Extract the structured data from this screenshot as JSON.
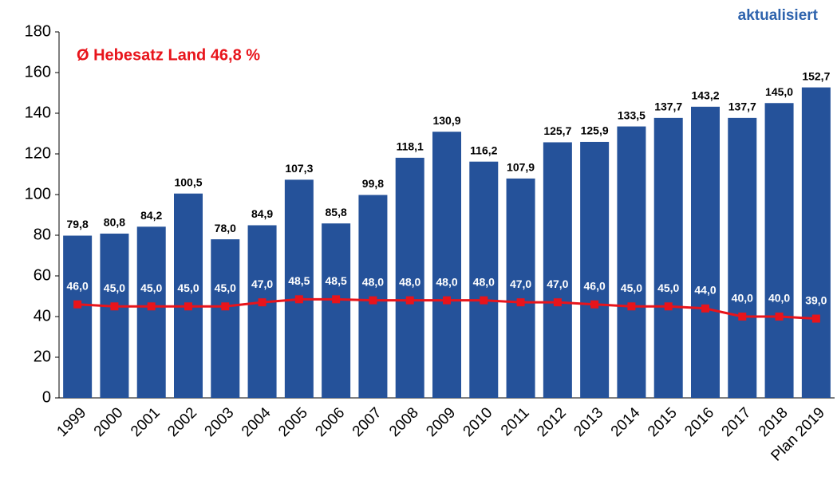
{
  "chart_data": {
    "type": "bar",
    "title": "Ø Hebesatz Land 46,8 %",
    "subtitle": "aktualisiert",
    "categories": [
      "1999",
      "2000",
      "2001",
      "2002",
      "2003",
      "2004",
      "2005",
      "2006",
      "2007",
      "2008",
      "2009",
      "2010",
      "2011",
      "2012",
      "2013",
      "2014",
      "2015",
      "2016",
      "2017",
      "2018",
      "Plan 2019"
    ],
    "series": [
      {
        "type": "bar",
        "color": "#25529a",
        "values": [
          79.8,
          80.8,
          84.2,
          100.5,
          78.0,
          84.9,
          107.3,
          85.8,
          99.8,
          118.1,
          130.9,
          116.2,
          107.9,
          125.7,
          125.9,
          133.5,
          137.7,
          143.2,
          137.7,
          145.0,
          152.7
        ],
        "value_labels": [
          "79,8",
          "80,8",
          "84,2",
          "100,5",
          "78,0",
          "84,9",
          "107,3",
          "85,8",
          "99,8",
          "118,1",
          "130,9",
          "116,2",
          "107,9",
          "125,7",
          "125,9",
          "133,5",
          "137,7",
          "143,2",
          "137,7",
          "145,0",
          "152,7"
        ]
      },
      {
        "type": "line",
        "color": "#e8141b",
        "values": [
          46.0,
          45.0,
          45.0,
          45.0,
          45.0,
          47.0,
          48.5,
          48.5,
          48.0,
          48.0,
          48.0,
          48.0,
          47.0,
          47.0,
          46.0,
          45.0,
          45.0,
          44.0,
          40.0,
          40.0,
          39.0
        ],
        "value_labels": [
          "46,0",
          "45,0",
          "45,0",
          "45,0",
          "45,0",
          "47,0",
          "48,5",
          "48,5",
          "48,0",
          "48,0",
          "48,0",
          "48,0",
          "47,0",
          "47,0",
          "46,0",
          "45,0",
          "45,0",
          "44,0",
          "40,0",
          "40,0",
          "39,0"
        ]
      }
    ],
    "ylim": [
      0,
      180
    ],
    "yticks": [
      0,
      20,
      40,
      60,
      80,
      100,
      120,
      140,
      160,
      180
    ],
    "grid": false
  }
}
